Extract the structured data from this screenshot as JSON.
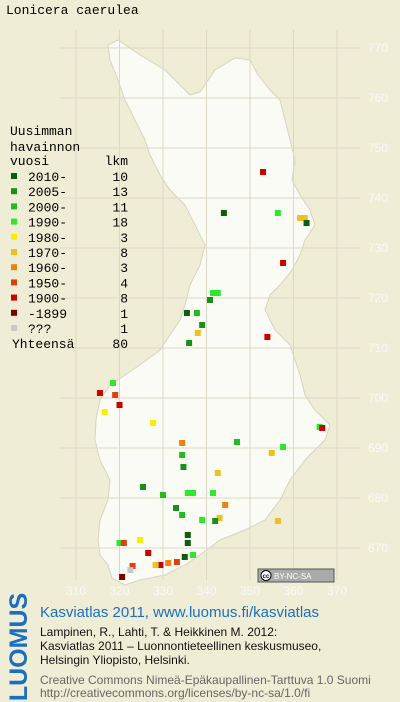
{
  "title": "Lonicera caerulea",
  "legend": {
    "header": [
      "Uusimman",
      "havainnon",
      "vuosi"
    ],
    "count_header": "lkm",
    "entries": [
      {
        "label": "2010-",
        "count": 10,
        "color": "#0b5e0b"
      },
      {
        "label": "2005-",
        "count": 13,
        "color": "#18901a"
      },
      {
        "label": "2000-",
        "count": 11,
        "color": "#22bb22"
      },
      {
        "label": "1990-",
        "count": 18,
        "color": "#2ee82e"
      },
      {
        "label": "1980-",
        "count": 3,
        "color": "#f8f000"
      },
      {
        "label": "1970-",
        "count": 8,
        "color": "#f0c020"
      },
      {
        "label": "1960-",
        "count": 3,
        "color": "#f08010"
      },
      {
        "label": "1950-",
        "count": 4,
        "color": "#e04010"
      },
      {
        "label": "1900-",
        "count": 8,
        "color": "#cc0000"
      },
      {
        "label": "-1899",
        "count": 1,
        "color": "#800000"
      },
      {
        "label": "???",
        "count": 1,
        "color": "#c8c8c8"
      }
    ],
    "total_label": "Yhteensä",
    "total": 80
  },
  "map": {
    "xticks": [
      310,
      320,
      330,
      340,
      350,
      360,
      370
    ],
    "yticks": [
      670,
      680,
      690,
      700,
      710,
      720,
      730,
      740,
      750,
      760,
      770
    ],
    "points": [
      {
        "x": 353,
        "y": 745.2,
        "period": "1900-"
      },
      {
        "x": 344,
        "y": 737,
        "period": "2010-"
      },
      {
        "x": 356.4,
        "y": 737,
        "period": "1990-"
      },
      {
        "x": 361.5,
        "y": 736,
        "period": "1970-"
      },
      {
        "x": 362.6,
        "y": 736,
        "period": "1970-"
      },
      {
        "x": 363,
        "y": 735,
        "period": "2010-"
      },
      {
        "x": 357.6,
        "y": 727,
        "period": "1900-"
      },
      {
        "x": 341.5,
        "y": 721,
        "period": "1990-"
      },
      {
        "x": 342.6,
        "y": 721,
        "period": "1990-"
      },
      {
        "x": 340.8,
        "y": 719.6,
        "period": "2005-"
      },
      {
        "x": 335.5,
        "y": 717,
        "period": "2010-"
      },
      {
        "x": 337.8,
        "y": 717,
        "period": "2000-"
      },
      {
        "x": 339,
        "y": 714.6,
        "period": "2005-"
      },
      {
        "x": 338,
        "y": 713,
        "period": "1970-"
      },
      {
        "x": 336,
        "y": 711,
        "period": "2005-"
      },
      {
        "x": 354,
        "y": 712.2,
        "period": "1900-"
      },
      {
        "x": 318.5,
        "y": 703,
        "period": "1990-"
      },
      {
        "x": 315.5,
        "y": 701,
        "period": "1900-"
      },
      {
        "x": 319,
        "y": 700.6,
        "period": "1950-"
      },
      {
        "x": 320,
        "y": 698.6,
        "period": "1900-"
      },
      {
        "x": 316.6,
        "y": 697.2,
        "period": "1980-"
      },
      {
        "x": 327.7,
        "y": 695,
        "period": "1980-"
      },
      {
        "x": 366,
        "y": 694.2,
        "period": "1990-"
      },
      {
        "x": 366.6,
        "y": 694,
        "period": "1900-"
      },
      {
        "x": 347,
        "y": 691.2,
        "period": "2000-"
      },
      {
        "x": 357.6,
        "y": 690.2,
        "period": "1990-"
      },
      {
        "x": 355,
        "y": 689,
        "period": "1970-"
      },
      {
        "x": 334.4,
        "y": 691,
        "period": "1960-"
      },
      {
        "x": 334.4,
        "y": 688.6,
        "period": "2000-"
      },
      {
        "x": 334.7,
        "y": 686.2,
        "period": "2005-"
      },
      {
        "x": 342.6,
        "y": 685,
        "period": "1970-"
      },
      {
        "x": 325.4,
        "y": 682.2,
        "period": "2005-"
      },
      {
        "x": 335.7,
        "y": 681,
        "period": "1990-"
      },
      {
        "x": 336.9,
        "y": 681,
        "period": "1990-"
      },
      {
        "x": 330,
        "y": 680.6,
        "period": "2000-"
      },
      {
        "x": 341.5,
        "y": 681,
        "period": "1990-"
      },
      {
        "x": 344.3,
        "y": 678.6,
        "period": "1960-"
      },
      {
        "x": 333,
        "y": 678,
        "period": "2005-"
      },
      {
        "x": 334.4,
        "y": 676.6,
        "period": "2000-"
      },
      {
        "x": 339,
        "y": 675.6,
        "period": "1990-"
      },
      {
        "x": 343,
        "y": 676,
        "period": "1970-"
      },
      {
        "x": 342,
        "y": 675.4,
        "period": "2005-"
      },
      {
        "x": 356.4,
        "y": 675.4,
        "period": "1970-"
      },
      {
        "x": 320,
        "y": 671,
        "period": "1990-"
      },
      {
        "x": 321,
        "y": 671,
        "period": "1950-"
      },
      {
        "x": 324.7,
        "y": 671.6,
        "period": "1980-"
      },
      {
        "x": 335.7,
        "y": 672.6,
        "period": "2010-"
      },
      {
        "x": 335.7,
        "y": 671,
        "period": "2010-"
      },
      {
        "x": 336.9,
        "y": 668.6,
        "period": "1990-"
      },
      {
        "x": 326.6,
        "y": 669,
        "period": "1900-"
      },
      {
        "x": 329.4,
        "y": 666.6,
        "period": "1900-"
      },
      {
        "x": 328.3,
        "y": 666.6,
        "period": "1970-"
      },
      {
        "x": 331.2,
        "y": 667,
        "period": "1960-"
      },
      {
        "x": 333.2,
        "y": 667.2,
        "period": "1950-"
      },
      {
        "x": 335,
        "y": 668.2,
        "period": "2010-"
      },
      {
        "x": 323,
        "y": 666.4,
        "period": "1950-"
      },
      {
        "x": 320.6,
        "y": 664.2,
        "period": "-1899"
      },
      {
        "x": 322.5,
        "y": 665.6,
        "period": "???"
      }
    ]
  },
  "license_badge": "BY-NC-SA",
  "logo": "LUOMUS",
  "footer": {
    "headline": "Kasviatlas 2011, www.luomus.fi/kasviatlas",
    "citation": [
      "Lampinen, R., Lahti, T. & Heikkinen M. 2012:",
      "Kasviatlas 2011 – Luonnontieteellinen keskusmuseo,",
      "Helsingin Yliopisto, Helsinki."
    ],
    "license": [
      "Creative Commons Nimeä-Epäkaupallinen-Tarttuva 1.0 Suomi",
      "http://creativecommons.org/licenses/by-nc-sa/1.0/fi"
    ]
  }
}
